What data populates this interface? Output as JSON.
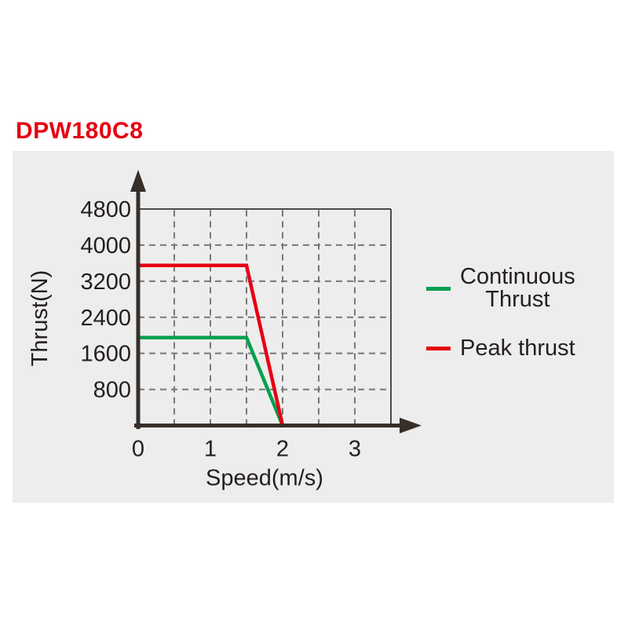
{
  "page": {
    "title": "DPW180C8"
  },
  "colors": {
    "title": "#e60012",
    "panel_background": "#ededed",
    "axis": "#362e29",
    "gridline": "#787878",
    "text": "#241f1d",
    "continuous_thrust_green": "#00a04e",
    "peak_thrust_red": "#e60012"
  },
  "chart_data": {
    "type": "line",
    "title": "DPW180C8",
    "xlabel": "Speed(m/s)",
    "ylabel": "Thrust(N)",
    "xlim": [
      0,
      3.5
    ],
    "ylim": [
      0,
      4800
    ],
    "x_ticks": [
      0,
      1,
      2,
      3
    ],
    "x_grid_step": 0.5,
    "y_ticks": [
      800,
      1600,
      2400,
      3200,
      4000,
      4800
    ],
    "grid_style": "dashed",
    "legend_position": "right-of-plot",
    "series": [
      {
        "id": "continuous-thrust",
        "name": "Continuous Thrust",
        "color": "#00a04e",
        "x": [
          0,
          1.5,
          2
        ],
        "y": [
          1950,
          1950,
          0
        ]
      },
      {
        "id": "peak-thrust",
        "name": "Peak thrust",
        "color": "#e60012",
        "x": [
          0,
          1.5,
          2
        ],
        "y": [
          3550,
          3550,
          0
        ]
      }
    ]
  },
  "legend": {
    "items": [
      {
        "series": "continuous-thrust",
        "lines": [
          "Continuous",
          "Thrust"
        ],
        "color": "#00a04e"
      },
      {
        "series": "peak-thrust",
        "lines": [
          "Peak thrust"
        ],
        "color": "#e60012"
      }
    ]
  }
}
